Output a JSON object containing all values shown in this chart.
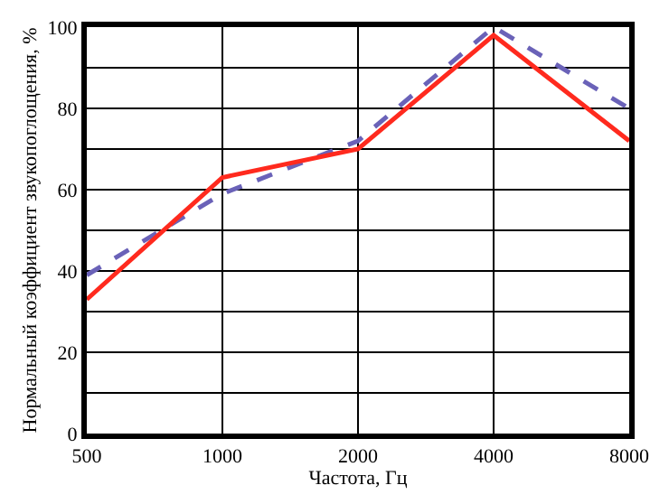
{
  "chart_data": {
    "type": "line",
    "xlabel": "Частота, Гц",
    "ylabel": "Нормальный коэффициент звукопоглощения, %",
    "categories": [
      "500",
      "1000",
      "2000",
      "4000",
      "8000"
    ],
    "series": [
      {
        "color": "#6a62b8",
        "line_style": "dashed",
        "values": [
          39,
          59,
          72,
          100,
          80
        ]
      },
      {
        "color": "#ff2a1e",
        "line_style": "solid",
        "values": [
          33,
          63,
          70,
          98,
          72
        ]
      }
    ],
    "ylim": [
      0,
      100
    ],
    "yticks": [
      0,
      {
        "value": 10,
        "label": null
      },
      20,
      {
        "value": 30,
        "label": null
      },
      40,
      {
        "value": 50,
        "label": null
      },
      60,
      {
        "value": 70,
        "label": null
      },
      80,
      {
        "value": 90,
        "label": null
      },
      100
    ],
    "grid": true,
    "marker": "none"
  }
}
